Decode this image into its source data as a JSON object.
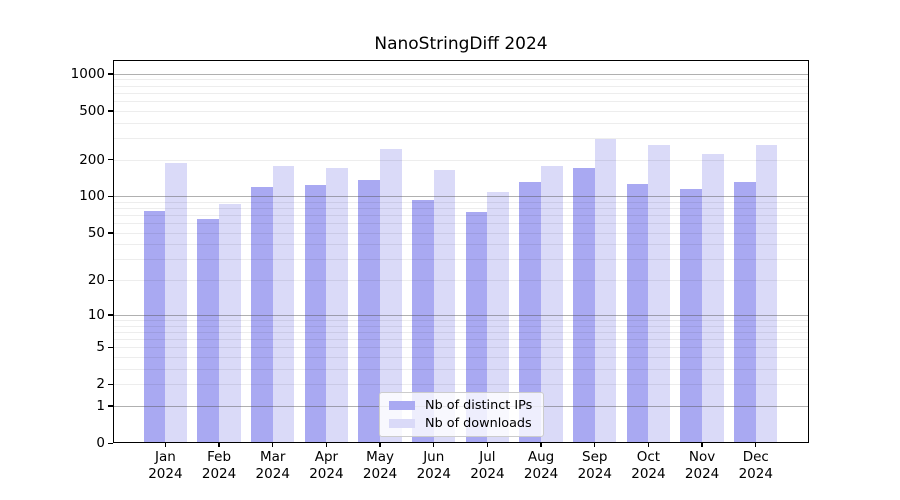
{
  "chart_data": {
    "type": "bar",
    "title": "NanoStringDiff 2024",
    "y_scale": "log10(value+1)",
    "ylim": [
      0,
      1300
    ],
    "y_ticks": [
      1000,
      500,
      200,
      100,
      50,
      20,
      10,
      5,
      2,
      1,
      0
    ],
    "y_major_gridlines": [
      1,
      10,
      100,
      1000
    ],
    "y_minor_gridlines": [
      2,
      3,
      4,
      5,
      6,
      7,
      8,
      9,
      20,
      30,
      40,
      50,
      60,
      70,
      80,
      90,
      200,
      300,
      400,
      500,
      600,
      700,
      800,
      900
    ],
    "x_tick_months": [
      "Jan",
      "Feb",
      "Mar",
      "Apr",
      "May",
      "Jun",
      "Jul",
      "Aug",
      "Sep",
      "Oct",
      "Nov",
      "Dec"
    ],
    "x_tick_year": "2024",
    "grid": true,
    "legend_position": "bottom-center",
    "series": [
      {
        "name": "Nb of distinct IPs",
        "color": "#a9a9f2",
        "values": [
          76,
          65,
          119,
          125,
          136,
          93,
          75,
          131,
          172,
          127,
          115,
          132
        ]
      },
      {
        "name": "Nb of downloads",
        "color": "#dadaf8",
        "values": [
          187,
          87,
          176,
          170,
          245,
          163,
          108,
          176,
          292,
          261,
          222,
          264
        ]
      }
    ]
  },
  "colors": {
    "frame": "#000000",
    "background": "#ffffff",
    "legend_border": "#cccccc"
  }
}
